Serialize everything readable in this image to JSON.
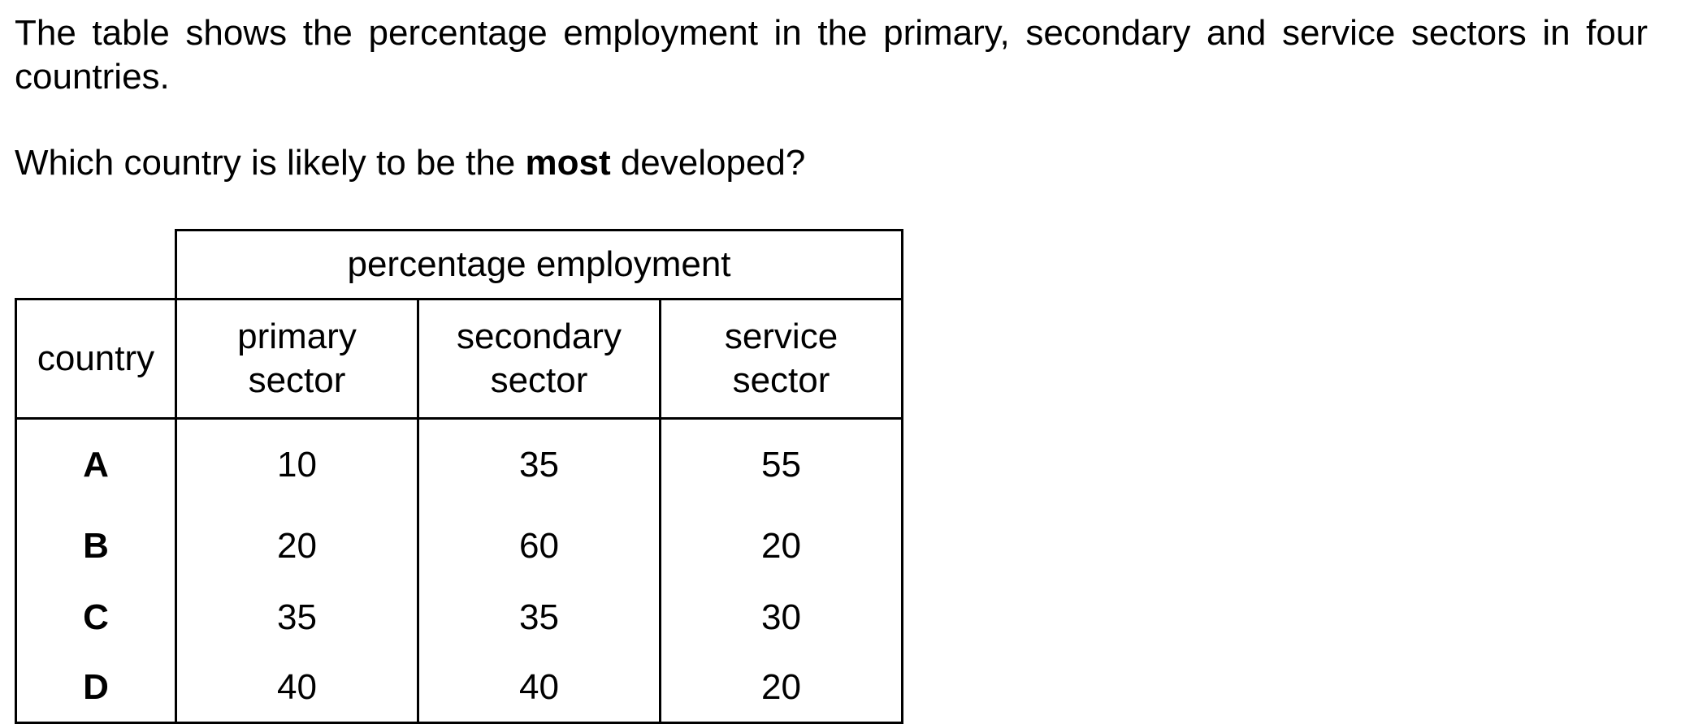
{
  "intro": "The table shows the percentage employment in the primary, secondary and service sectors in four countries.",
  "question": {
    "before": "Which country is likely to be the ",
    "emphasis": "most",
    "after": " developed?"
  },
  "table": {
    "group_header": "percentage employment",
    "country_header": "country",
    "sector_headers": [
      {
        "line1": "primary",
        "line2": "sector"
      },
      {
        "line1": "secondary",
        "line2": "sector"
      },
      {
        "line1": "service",
        "line2": "sector"
      }
    ],
    "rows": [
      {
        "country": "A",
        "primary": "10",
        "secondary": "35",
        "service": "55"
      },
      {
        "country": "B",
        "primary": "20",
        "secondary": "60",
        "service": "20"
      },
      {
        "country": "C",
        "primary": "35",
        "secondary": "35",
        "service": "30"
      },
      {
        "country": "D",
        "primary": "40",
        "secondary": "40",
        "service": "20"
      }
    ]
  }
}
